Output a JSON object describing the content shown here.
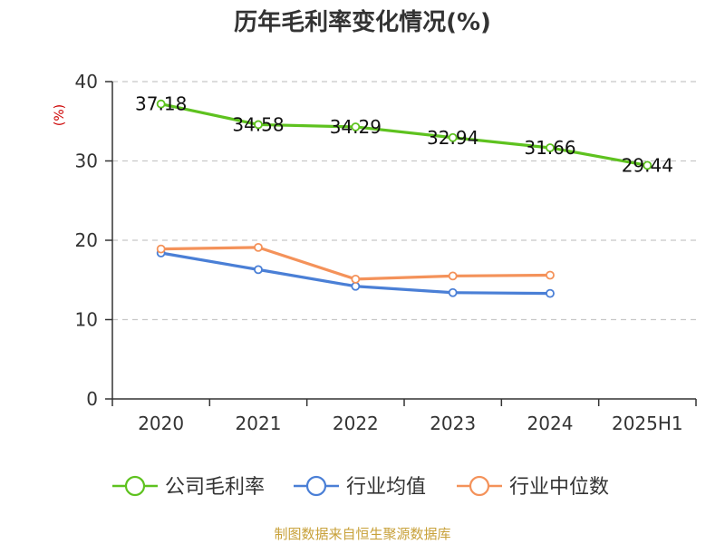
{
  "chart_data": {
    "type": "line",
    "title": "历年毛利率变化情况(%)",
    "ylabel": "(%)",
    "categories": [
      "2020",
      "2021",
      "2022",
      "2023",
      "2024",
      "2025H1"
    ],
    "yticks": [
      "0",
      "10",
      "20",
      "30",
      "40"
    ],
    "ylim": [
      0,
      40
    ],
    "grid": true,
    "legend_position": "bottom",
    "series": [
      {
        "name": "公司毛利率",
        "color": "#5ec21f",
        "values": [
          37.18,
          34.58,
          34.29,
          32.94,
          31.66,
          29.44
        ],
        "labels": [
          "37.18",
          "34.58",
          "34.29",
          "32.94",
          "31.66",
          "29.44"
        ]
      },
      {
        "name": "行业均值",
        "color": "#4a7fd6",
        "values": [
          18.4,
          16.3,
          14.2,
          13.4,
          13.3,
          null
        ]
      },
      {
        "name": "行业中位数",
        "color": "#f4925a",
        "values": [
          18.9,
          19.1,
          15.1,
          15.5,
          15.6,
          null
        ]
      }
    ]
  },
  "footer": {
    "source": "制图数据来自恒生聚源数据库"
  }
}
